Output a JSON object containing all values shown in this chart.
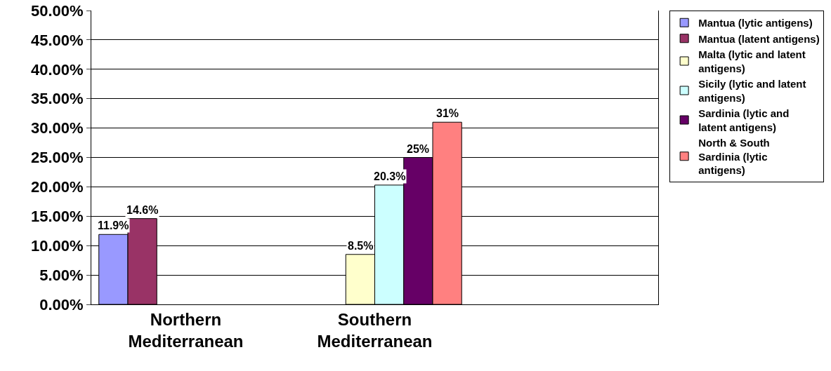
{
  "chart_data": {
    "type": "bar",
    "categories": [
      "Northern Mediterranean",
      "Southern Mediterranean",
      null
    ],
    "series": [
      {
        "name": "Mantua (lytic antigens)",
        "color": "#9999ff",
        "values": [
          11.9,
          null,
          null
        ],
        "value_labels": [
          "11.9%",
          null,
          null
        ]
      },
      {
        "name": "Mantua (latent antigens)",
        "color": "#993366",
        "values": [
          14.6,
          null,
          null
        ],
        "value_labels": [
          "14.6%",
          null,
          null
        ]
      },
      {
        "name": "Malta (lytic and latent antigens)",
        "color": "#ffffcc",
        "values": [
          null,
          8.5,
          null
        ],
        "value_labels": [
          null,
          "8.5%",
          null
        ]
      },
      {
        "name": "Sicily (lytic and latent antigens)",
        "color": "#ccffff",
        "values": [
          null,
          20.3,
          null
        ],
        "value_labels": [
          null,
          "20.3%",
          null
        ]
      },
      {
        "name": "Sardinia (lytic and latent antigens)",
        "color": "#660066",
        "values": [
          null,
          25,
          null
        ],
        "value_labels": [
          null,
          "25%",
          null
        ]
      },
      {
        "name": "North & South Sardinia (lytic antigens)",
        "color": "#ff8080",
        "values": [
          null,
          31,
          null
        ],
        "value_labels": [
          null,
          "31%",
          null
        ]
      }
    ],
    "ylim": [
      0,
      50
    ],
    "yticks": [
      {
        "value": 0,
        "label": "0.00%"
      },
      {
        "value": 5,
        "label": "5.00%"
      },
      {
        "value": 10,
        "label": "10.00%"
      },
      {
        "value": 15,
        "label": "15.00%"
      },
      {
        "value": 20,
        "label": "20.00%"
      },
      {
        "value": 25,
        "label": "25.00%"
      },
      {
        "value": 30,
        "label": "30.00%"
      },
      {
        "value": 35,
        "label": "35.00%"
      },
      {
        "value": 40,
        "label": "40.00%"
      },
      {
        "value": 45,
        "label": "45.00%"
      },
      {
        "value": 50,
        "label": "50.00%"
      }
    ],
    "grid": "y",
    "legend": "right"
  }
}
